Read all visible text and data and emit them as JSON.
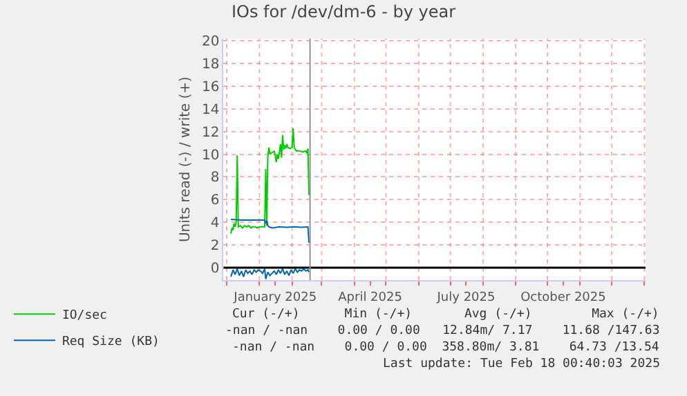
{
  "chart_data": {
    "type": "line",
    "title": "IOs for /dev/dm-6 - by year",
    "ylabel": "Units read (-) / write (+)",
    "xlim": [
      "2024-11-28",
      "2026-01-02"
    ],
    "ylim": [
      -1.1,
      20.2
    ],
    "yticks": [
      0,
      2,
      4,
      6,
      8,
      10,
      12,
      14,
      16,
      18,
      20
    ],
    "xticks": [
      {
        "value": "2024-12-01",
        "label": null
      },
      {
        "value": "2025-01-01",
        "label": null
      },
      {
        "value": "2025-01-16",
        "label": "January 2025"
      },
      {
        "value": "2025-02-01",
        "label": null
      },
      {
        "value": "2025-03-01",
        "label": null
      },
      {
        "value": "2025-04-01",
        "label": null
      },
      {
        "value": "2025-04-16",
        "label": "April 2025"
      },
      {
        "value": "2025-05-01",
        "label": null
      },
      {
        "value": "2025-06-01",
        "label": null
      },
      {
        "value": "2025-07-01",
        "label": null
      },
      {
        "value": "2025-07-16",
        "label": "July 2025"
      },
      {
        "value": "2025-08-01",
        "label": null
      },
      {
        "value": "2025-09-01",
        "label": null
      },
      {
        "value": "2025-10-01",
        "label": null
      },
      {
        "value": "2025-10-16",
        "label": "October 2025"
      },
      {
        "value": "2025-11-01",
        "label": null
      },
      {
        "value": "2025-12-01",
        "label": null
      },
      {
        "value": "2026-01-01",
        "label": null
      }
    ],
    "grid": true,
    "legend": "bottom left",
    "ref_lines": [
      {
        "axis": "y",
        "value": 0,
        "color": "#000000"
      },
      {
        "axis": "x",
        "value": "2025-02-18",
        "color": "#909090"
      }
    ],
    "series": [
      {
        "name": "IO/sec",
        "color": "#00cc00",
        "x": [
          "2024-12-05",
          "2024-12-06",
          "2024-12-07",
          "2024-12-08",
          "2024-12-09",
          "2024-12-10",
          "2024-12-11",
          "2024-12-12",
          "2024-12-14",
          "2024-12-16",
          "2024-12-18",
          "2024-12-20",
          "2024-12-22",
          "2024-12-24",
          "2024-12-26",
          "2024-12-28",
          "2024-12-30",
          "2025-01-01",
          "2025-01-03",
          "2025-01-05",
          "2025-01-06",
          "2025-01-07",
          "2025-01-08",
          "2025-01-09",
          "2025-01-10",
          "2025-01-11",
          "2025-01-12",
          "2025-01-14",
          "2025-01-15",
          "2025-01-16",
          "2025-01-17",
          "2025-01-18",
          "2025-01-19",
          "2025-01-20",
          "2025-01-21",
          "2025-01-22",
          "2025-01-23",
          "2025-01-24",
          "2025-01-25",
          "2025-01-26",
          "2025-01-27",
          "2025-01-28",
          "2025-01-30",
          "2025-02-01",
          "2025-02-02",
          "2025-02-03",
          "2025-02-05",
          "2025-02-08",
          "2025-02-11",
          "2025-02-14",
          "2025-02-15",
          "2025-02-16",
          "2025-02-17"
        ],
        "values": [
          3.0,
          3.5,
          3.3,
          3.9,
          3.6,
          4.0,
          9.9,
          3.6,
          3.7,
          3.5,
          3.7,
          3.6,
          3.7,
          3.5,
          3.6,
          3.6,
          3.5,
          3.6,
          3.6,
          3.6,
          3.6,
          8.7,
          3.7,
          9.8,
          10.6,
          10.0,
          10.1,
          10.2,
          10.3,
          9.9,
          9.3,
          10.0,
          9.6,
          10.2,
          10.9,
          9.7,
          11.7,
          10.4,
          10.8,
          10.5,
          10.9,
          10.6,
          10.5,
          10.6,
          12.3,
          10.6,
          10.3,
          10.3,
          10.2,
          10.3,
          10.1,
          10.5,
          6.4
        ]
      },
      {
        "name": "Req Size (KB)",
        "color": "#0066b3",
        "x": [
          "2024-12-05",
          "2024-12-15",
          "2024-12-25",
          "2025-01-06",
          "2025-01-07",
          "2025-01-08",
          "2025-01-09",
          "2025-01-10",
          "2025-01-13",
          "2025-01-20",
          "2025-01-27",
          "2025-02-03",
          "2025-02-10",
          "2025-02-16",
          "2025-02-17"
        ],
        "values": [
          4.25,
          4.2,
          4.2,
          4.2,
          3.9,
          4.15,
          3.7,
          3.6,
          3.5,
          3.6,
          3.55,
          3.6,
          3.55,
          3.6,
          2.2
        ]
      },
      {
        "color": "#0066b3",
        "x": [
          "2024-12-05",
          "2024-12-07",
          "2024-12-09",
          "2024-12-11",
          "2024-12-13",
          "2024-12-15",
          "2024-12-17",
          "2024-12-19",
          "2024-12-21",
          "2024-12-23",
          "2024-12-25",
          "2024-12-27",
          "2024-12-29",
          "2024-12-31",
          "2025-01-02",
          "2025-01-04",
          "2025-01-06",
          "2025-01-07",
          "2025-01-09",
          "2025-01-11",
          "2025-01-13",
          "2025-01-15",
          "2025-01-17",
          "2025-01-19",
          "2025-01-21",
          "2025-01-23",
          "2025-01-25",
          "2025-01-27",
          "2025-01-29",
          "2025-01-31",
          "2025-02-02",
          "2025-02-04",
          "2025-02-06",
          "2025-02-08",
          "2025-02-10",
          "2025-02-12",
          "2025-02-14",
          "2025-02-16",
          "2025-02-17"
        ],
        "values": [
          -0.8,
          -0.2,
          -0.6,
          -0.1,
          -0.7,
          -0.3,
          -0.8,
          -0.2,
          -0.5,
          -0.3,
          -0.6,
          -0.2,
          -0.4,
          -0.2,
          -0.3,
          -0.5,
          -0.1,
          -1.0,
          -0.4,
          -0.7,
          -0.5,
          -0.3,
          -0.6,
          -0.2,
          -0.5,
          -0.1,
          -0.6,
          -0.3,
          -0.7,
          -0.2,
          -0.5,
          -0.1,
          -0.4,
          -0.2,
          -0.3,
          -0.1,
          -0.3,
          -0.2,
          -0.4
        ]
      }
    ],
    "annotations": [
      "Cur (-/+)      Min (-/+)       Avg (-/+)        Max (-/+)",
      "-nan / -nan    0.00 / 0.00   12.84m/ 7.17    11.68 /147.63",
      "-nan / -nan    0.00 / 0.00  358.80m/ 3.81    64.73 /13.54",
      "Last update: Tue Feb 18 00:40:03 2025"
    ]
  }
}
